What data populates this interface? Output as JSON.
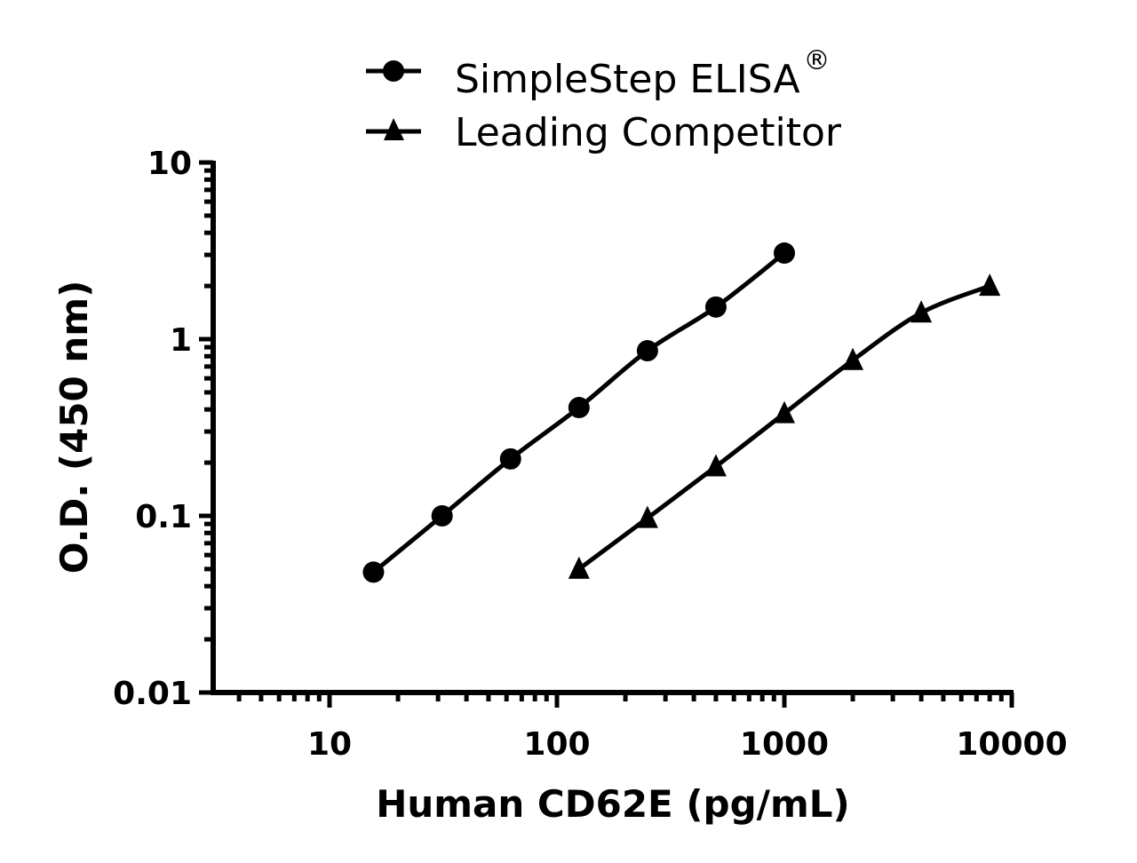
{
  "chart_data": {
    "type": "line",
    "title": "",
    "xlabel": "Human CD62E (pg/mL)",
    "ylabel": "O.D. (450 nm)",
    "xscale": "log",
    "yscale": "log",
    "xlim": [
      3.1,
      10000
    ],
    "ylim": [
      0.01,
      10
    ],
    "x_ticks": [
      "10",
      "100",
      "1000",
      "10000"
    ],
    "y_ticks": [
      "0.01",
      "0.1",
      "1",
      "10"
    ],
    "grid": false,
    "legend_position": "top",
    "series": [
      {
        "name": "SimpleStep ELISA®",
        "marker": "circle",
        "color": "#000000",
        "x": [
          15.6,
          31.25,
          62.5,
          125,
          250,
          500,
          1000
        ],
        "values": [
          0.048,
          0.1,
          0.21,
          0.41,
          0.86,
          1.52,
          3.07
        ]
      },
      {
        "name": "Leading Competitor",
        "marker": "triangle",
        "color": "#000000",
        "x": [
          125,
          250,
          500,
          1000,
          2000,
          4000,
          8000
        ],
        "values": [
          0.05,
          0.097,
          0.19,
          0.38,
          0.76,
          1.41,
          2.0
        ]
      }
    ]
  },
  "legend": {
    "items": [
      {
        "label": "SimpleStep ELISA",
        "superscript": "®",
        "marker": "circle-marker"
      },
      {
        "label": "Leading Competitor",
        "superscript": "",
        "marker": "triangle-marker"
      }
    ]
  }
}
